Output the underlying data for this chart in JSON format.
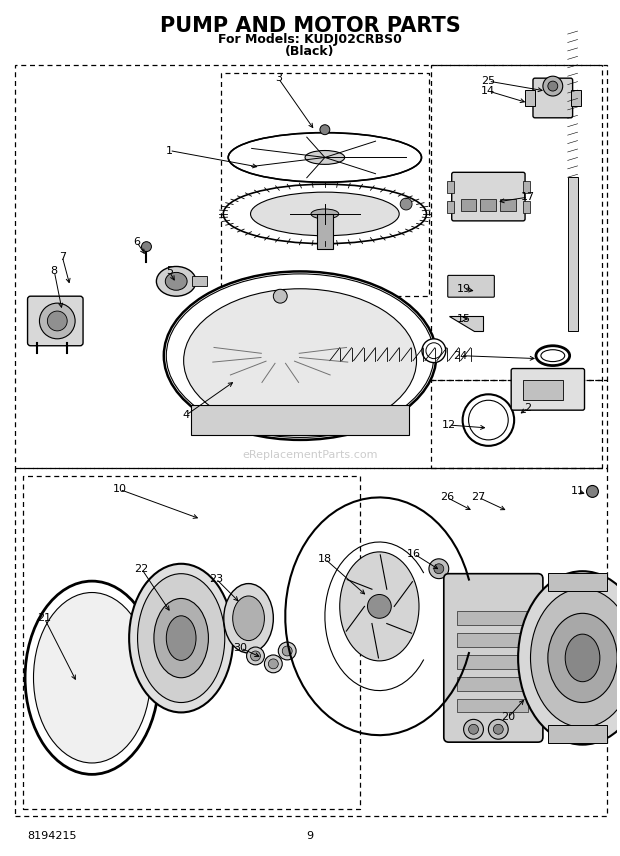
{
  "title": "PUMP AND MOTOR PARTS",
  "subtitle1": "For Models: KUDJ02CRBS0",
  "subtitle2": "(Black)",
  "doc_number": "8194215",
  "page_number": "9",
  "watermark": "eReplacementParts.com",
  "bg_color": "#ffffff",
  "fig_w": 6.2,
  "fig_h": 8.56,
  "dpi": 100
}
